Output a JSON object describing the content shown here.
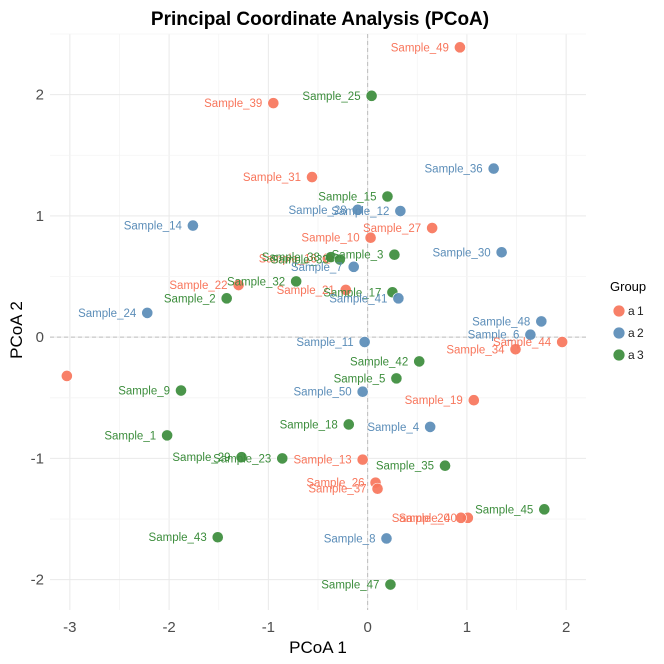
{
  "chart_data": {
    "type": "scatter",
    "title": "Principal Coordinate Analysis (PCoA)",
    "xlabel": "PCoA 1",
    "ylabel": "PCoA 2",
    "xlim": [
      -3.2,
      2.2
    ],
    "ylim": [
      -2.25,
      2.5
    ],
    "x_ticks": [
      -3,
      -2,
      -1,
      0,
      1,
      2
    ],
    "y_ticks": [
      -2,
      -1,
      0,
      1,
      2
    ],
    "grid": true,
    "zero_lines": true,
    "legend": {
      "title": "Group",
      "position": "right",
      "entries": [
        {
          "group": "1",
          "glyph": "a",
          "label": "1",
          "color": "#F8765C"
        },
        {
          "group": "2",
          "glyph": "a",
          "label": "2",
          "color": "#5B8DB8"
        },
        {
          "group": "3",
          "glyph": "a",
          "label": "3",
          "color": "#3C8D3C"
        }
      ]
    },
    "colors": {
      "1": "#F8765C",
      "2": "#5B8DB8",
      "3": "#3C8D3C"
    },
    "points": [
      {
        "label": "Sample_49",
        "x": 0.93,
        "y": 2.39,
        "group": "1"
      },
      {
        "label": "Sample_39",
        "x": -0.95,
        "y": 1.93,
        "group": "1"
      },
      {
        "label": "Sample_25",
        "x": 0.04,
        "y": 1.99,
        "group": "3"
      },
      {
        "label": "Sample_31",
        "x": -0.56,
        "y": 1.32,
        "group": "1"
      },
      {
        "label": "Sample_36",
        "x": 1.27,
        "y": 1.39,
        "group": "2"
      },
      {
        "label": "Sample_15",
        "x": 0.2,
        "y": 1.16,
        "group": "3"
      },
      {
        "label": "Sample_14",
        "x": -1.76,
        "y": 0.92,
        "group": "2"
      },
      {
        "label": "Sample_28",
        "x": -0.1,
        "y": 1.05,
        "group": "2"
      },
      {
        "label": "Sample_12",
        "x": 0.33,
        "y": 1.04,
        "group": "2"
      },
      {
        "label": "Sample_27",
        "x": 0.65,
        "y": 0.9,
        "group": "1"
      },
      {
        "label": "Sample_10",
        "x": 0.03,
        "y": 0.82,
        "group": "1"
      },
      {
        "label": "Sample_30",
        "x": 1.35,
        "y": 0.7,
        "group": "2"
      },
      {
        "label": "Sample_16",
        "x": -0.4,
        "y": 0.65,
        "group": "1"
      },
      {
        "label": "Sample_38",
        "x": -0.37,
        "y": 0.66,
        "group": "3"
      },
      {
        "label": "Sample_33",
        "x": -0.28,
        "y": 0.64,
        "group": "3"
      },
      {
        "label": "Sample_7",
        "x": -0.14,
        "y": 0.58,
        "group": "2"
      },
      {
        "label": "Sample_3",
        "x": 0.27,
        "y": 0.68,
        "group": "3"
      },
      {
        "label": "Sample_22",
        "x": -1.3,
        "y": 0.43,
        "group": "1"
      },
      {
        "label": "Sample_32",
        "x": -0.72,
        "y": 0.46,
        "group": "3"
      },
      {
        "label": "Sample_21",
        "x": -0.22,
        "y": 0.39,
        "group": "1"
      },
      {
        "label": "Sample_17",
        "x": 0.25,
        "y": 0.37,
        "group": "3"
      },
      {
        "label": "Sample_41",
        "x": 0.31,
        "y": 0.32,
        "group": "2"
      },
      {
        "label": "Sample_2",
        "x": -1.42,
        "y": 0.32,
        "group": "3"
      },
      {
        "label": "Sample_24",
        "x": -2.22,
        "y": 0.2,
        "group": "2"
      },
      {
        "label": "Sample_48",
        "x": 1.75,
        "y": 0.13,
        "group": "2"
      },
      {
        "label": "Sample_6",
        "x": 1.64,
        "y": 0.02,
        "group": "2"
      },
      {
        "label": "Sample_44",
        "x": 1.96,
        "y": -0.04,
        "group": "1"
      },
      {
        "label": "Sample_34",
        "x": 1.49,
        "y": -0.1,
        "group": "1"
      },
      {
        "label": "Sample_11",
        "x": -0.03,
        "y": -0.04,
        "group": "2"
      },
      {
        "label": "Sample_42",
        "x": 0.52,
        "y": -0.2,
        "group": "3"
      },
      {
        "label": "Sample_5",
        "x": 0.29,
        "y": -0.34,
        "group": "3"
      },
      {
        "label": "Sample_50",
        "x": -0.05,
        "y": -0.45,
        "group": "2"
      },
      {
        "label": "Sample_19",
        "x": 1.07,
        "y": -0.52,
        "group": "1"
      },
      {
        "label": "Sample_9",
        "x": -1.88,
        "y": -0.44,
        "group": "3"
      },
      {
        "label": "Sample_18",
        "x": -0.19,
        "y": -0.72,
        "group": "3"
      },
      {
        "label": "Sample_4",
        "x": 0.63,
        "y": -0.74,
        "group": "2"
      },
      {
        "label": "Sample_1",
        "x": -2.02,
        "y": -0.81,
        "group": "3"
      },
      {
        "label": "Sample_29",
        "x": -1.27,
        "y": -0.99,
        "group": "3"
      },
      {
        "label": "Sample_23",
        "x": -0.86,
        "y": -1.0,
        "group": "3"
      },
      {
        "label": "Sample_13",
        "x": -0.05,
        "y": -1.01,
        "group": "1"
      },
      {
        "label": "Sample_35",
        "x": 0.78,
        "y": -1.06,
        "group": "3"
      },
      {
        "label": "Sample_26",
        "x": 0.08,
        "y": -1.2,
        "group": "1"
      },
      {
        "label": "Sample_37",
        "x": 0.1,
        "y": -1.25,
        "group": "1"
      },
      {
        "label": "Sample_45",
        "x": 1.78,
        "y": -1.42,
        "group": "3"
      },
      {
        "label": "Sample_40",
        "x": 1.01,
        "y": -1.49,
        "group": "1"
      },
      {
        "label": "Sample_20",
        "x": 0.94,
        "y": -1.49,
        "group": "1"
      },
      {
        "label": "Sample_43",
        "x": -1.51,
        "y": -1.65,
        "group": "3"
      },
      {
        "label": "Sample_8",
        "x": 0.19,
        "y": -1.66,
        "group": "2"
      },
      {
        "label": "Sample_47",
        "x": 0.23,
        "y": -2.04,
        "group": "3"
      },
      {
        "label": "",
        "x": -3.03,
        "y": -0.32,
        "group": "1"
      }
    ]
  }
}
